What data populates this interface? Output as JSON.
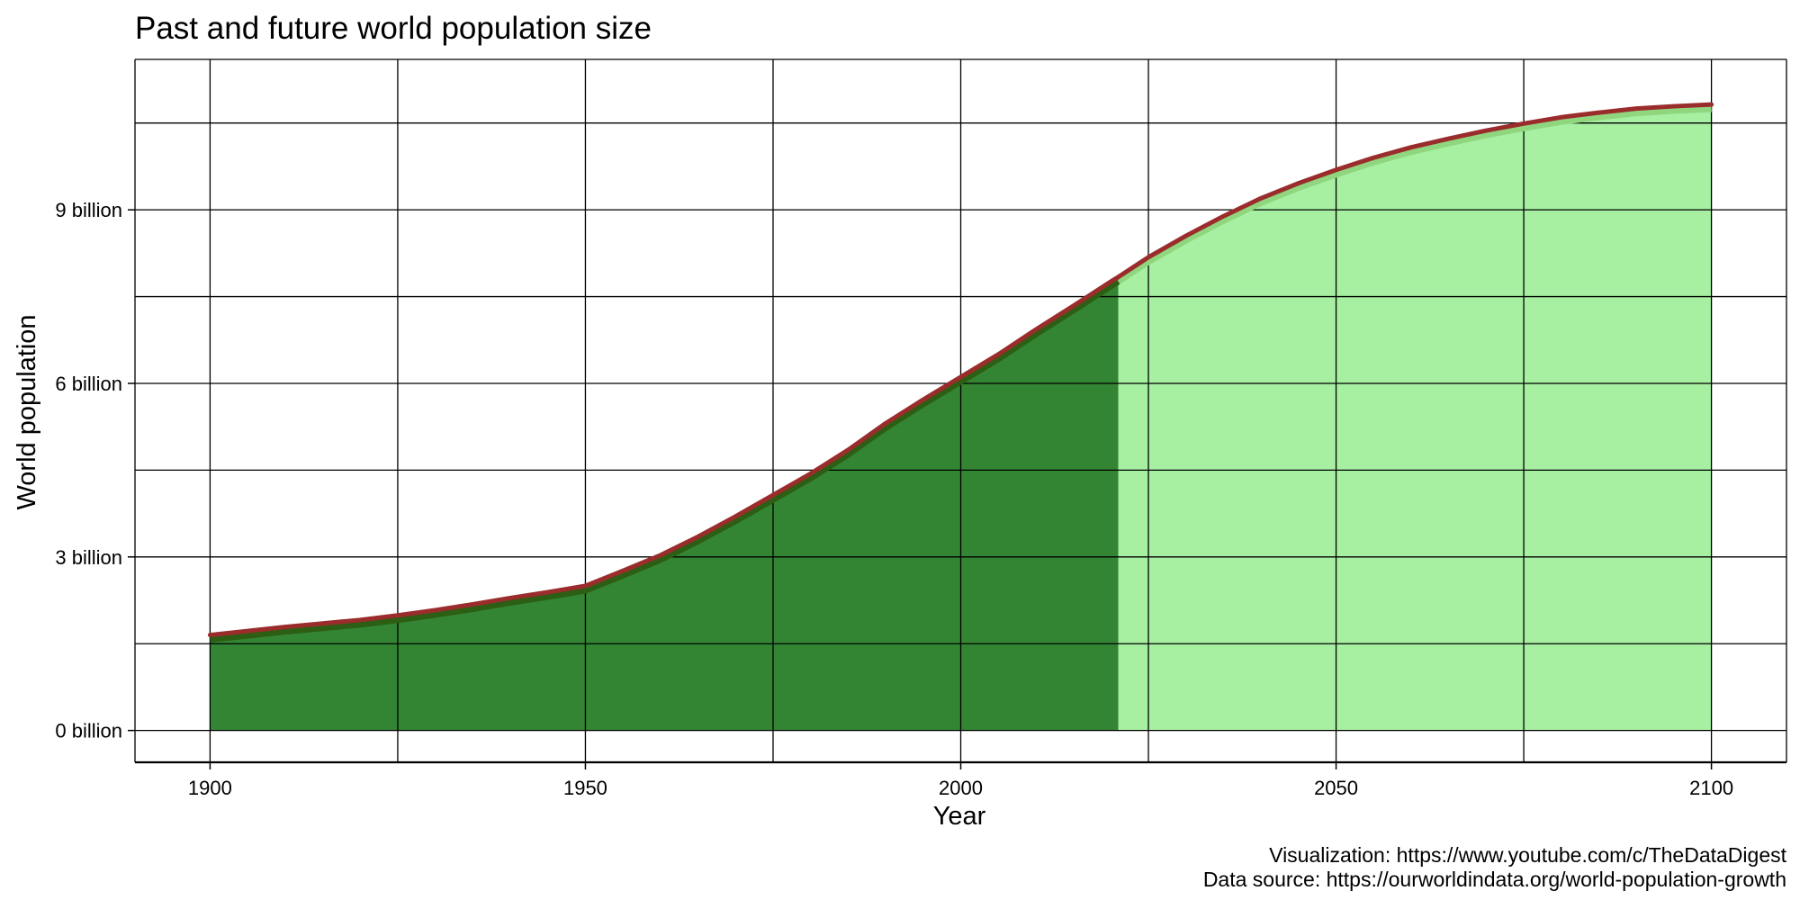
{
  "chart_data": {
    "type": "area",
    "title": "Past and future world population size",
    "xlabel": "Year",
    "ylabel": "World population",
    "xlim": [
      1890,
      2110
    ],
    "ylim": [
      -0.55,
      11.6
    ],
    "x_ticks": [
      {
        "value": 1900,
        "label": "1900"
      },
      {
        "value": 1950,
        "label": "1950"
      },
      {
        "value": 2000,
        "label": "2000"
      },
      {
        "value": 2050,
        "label": "2050"
      },
      {
        "value": 2100,
        "label": "2100"
      }
    ],
    "x_minor_ticks": [
      1925,
      1975,
      2025,
      2075
    ],
    "y_ticks": [
      {
        "value": 0,
        "label": "0 billion"
      },
      {
        "value": 3,
        "label": "3 billion"
      },
      {
        "value": 6,
        "label": "6 billion"
      },
      {
        "value": 9,
        "label": "9 billion"
      }
    ],
    "y_minor_ticks": [
      1.5,
      4.5,
      7.5,
      10.5
    ],
    "grid": true,
    "unit": "billion",
    "split_year": 2021,
    "colors": {
      "past_fill": "#338533",
      "future_fill": "#a7f0a2",
      "past_line": "#2c5e14",
      "future_line": "#8fd67f",
      "top_line": "#9b2c2c"
    },
    "series": [
      {
        "x": [
          1900,
          1905,
          1910,
          1915,
          1920,
          1925,
          1930,
          1935,
          1940,
          1945,
          1950,
          1955,
          1960,
          1965,
          1970,
          1975,
          1980,
          1985,
          1990,
          1995,
          2000,
          2005,
          2010,
          2015,
          2020,
          2021,
          2025,
          2030,
          2035,
          2040,
          2045,
          2050,
          2055,
          2060,
          2065,
          2070,
          2075,
          2080,
          2085,
          2090,
          2095,
          2100
        ],
        "values": [
          1.65,
          1.72,
          1.79,
          1.85,
          1.91,
          1.99,
          2.08,
          2.18,
          2.29,
          2.39,
          2.5,
          2.76,
          3.03,
          3.35,
          3.7,
          4.07,
          4.44,
          4.85,
          5.31,
          5.72,
          6.11,
          6.5,
          6.93,
          7.34,
          7.76,
          7.84,
          8.18,
          8.55,
          8.89,
          9.2,
          9.46,
          9.69,
          9.9,
          10.08,
          10.23,
          10.37,
          10.49,
          10.6,
          10.68,
          10.75,
          10.79,
          10.82
        ]
      }
    ],
    "caption": [
      "Visualization: https://www.youtube.com/c/TheDataDigest",
      "Data source: https://ourworldindata.org/world-population-growth"
    ]
  }
}
